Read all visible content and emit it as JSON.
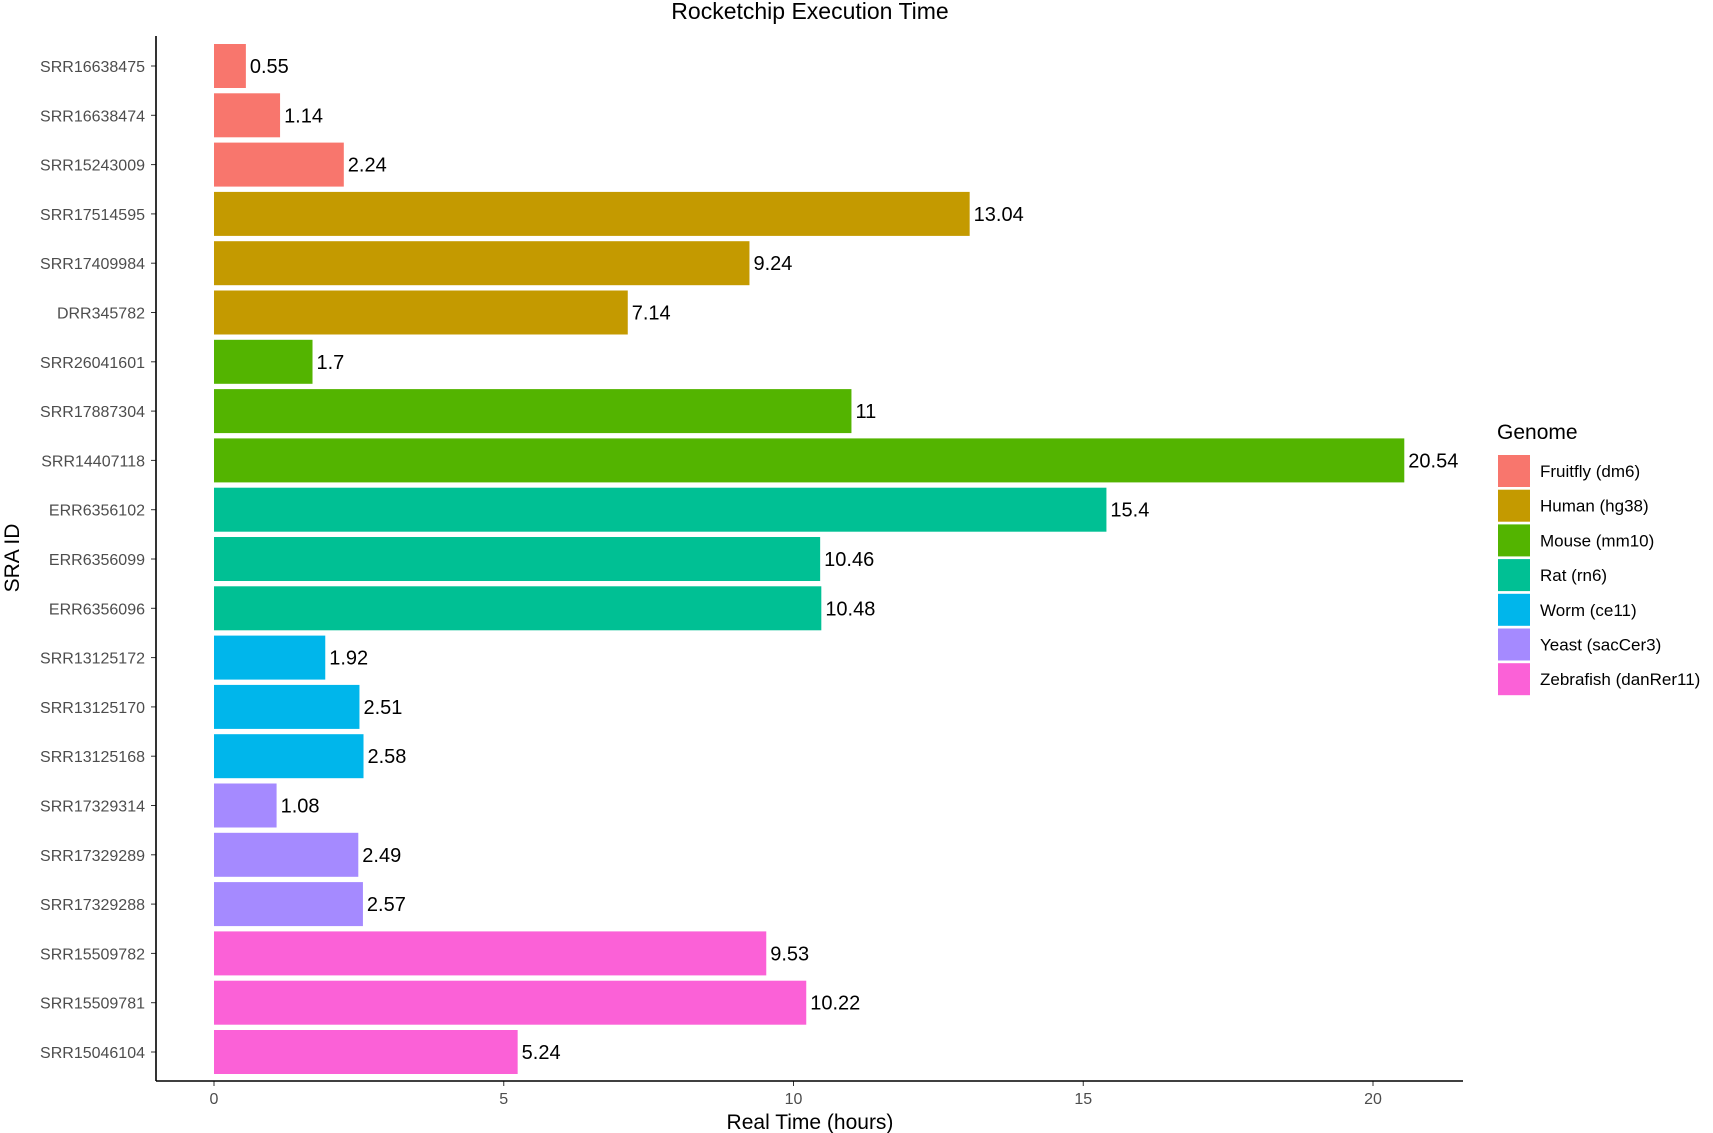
{
  "chart_data": {
    "type": "bar",
    "orientation": "horizontal",
    "title": "Rocketchip Execution Time",
    "xlabel": "Real Time (hours)",
    "ylabel": "SRA ID",
    "xlim": [
      0,
      21
    ],
    "xticks": [
      0,
      5,
      10,
      15,
      20
    ],
    "grid": false,
    "legend_position": "right",
    "legend": {
      "title": "Genome",
      "entries": [
        {
          "name": "Fruitfly (dm6)",
          "color": "#F8766D"
        },
        {
          "name": "Human (hg38)",
          "color": "#C49A00"
        },
        {
          "name": "Mouse (mm10)",
          "color": "#53B400"
        },
        {
          "name": "Rat (rn6)",
          "color": "#00C094"
        },
        {
          "name": "Worm (ce11)",
          "color": "#00B6EB"
        },
        {
          "name": "Yeast (sacCer3)",
          "color": "#A58AFF"
        },
        {
          "name": "Zebrafish (danRer11)",
          "color": "#FB61D7"
        }
      ]
    },
    "bars": [
      {
        "category": "SRR16638475",
        "value": 0.55,
        "label": "0.55",
        "genome": 0
      },
      {
        "category": "SRR16638474",
        "value": 1.14,
        "label": "1.14",
        "genome": 0
      },
      {
        "category": "SRR15243009",
        "value": 2.24,
        "label": "2.24",
        "genome": 0
      },
      {
        "category": "SRR17514595",
        "value": 13.04,
        "label": "13.04",
        "genome": 1
      },
      {
        "category": "SRR17409984",
        "value": 9.24,
        "label": "9.24",
        "genome": 1
      },
      {
        "category": "DRR345782",
        "value": 7.14,
        "label": "7.14",
        "genome": 1
      },
      {
        "category": "SRR26041601",
        "value": 1.7,
        "label": "1.7",
        "genome": 2
      },
      {
        "category": "SRR17887304",
        "value": 11,
        "label": "11",
        "genome": 2
      },
      {
        "category": "SRR14407118",
        "value": 20.54,
        "label": "20.54",
        "genome": 2
      },
      {
        "category": "ERR6356102",
        "value": 15.4,
        "label": "15.4",
        "genome": 3
      },
      {
        "category": "ERR6356099",
        "value": 10.46,
        "label": "10.46",
        "genome": 3
      },
      {
        "category": "ERR6356096",
        "value": 10.48,
        "label": "10.48",
        "genome": 3
      },
      {
        "category": "SRR13125172",
        "value": 1.92,
        "label": "1.92",
        "genome": 4
      },
      {
        "category": "SRR13125170",
        "value": 2.51,
        "label": "2.51",
        "genome": 4
      },
      {
        "category": "SRR13125168",
        "value": 2.58,
        "label": "2.58",
        "genome": 4
      },
      {
        "category": "SRR17329314",
        "value": 1.08,
        "label": "1.08",
        "genome": 5
      },
      {
        "category": "SRR17329289",
        "value": 2.49,
        "label": "2.49",
        "genome": 5
      },
      {
        "category": "SRR17329288",
        "value": 2.57,
        "label": "2.57",
        "genome": 5
      },
      {
        "category": "SRR15509782",
        "value": 9.53,
        "label": "9.53",
        "genome": 6
      },
      {
        "category": "SRR15509781",
        "value": 10.22,
        "label": "10.22",
        "genome": 6
      },
      {
        "category": "SRR15046104",
        "value": 5.24,
        "label": "5.24",
        "genome": 6
      }
    ]
  }
}
